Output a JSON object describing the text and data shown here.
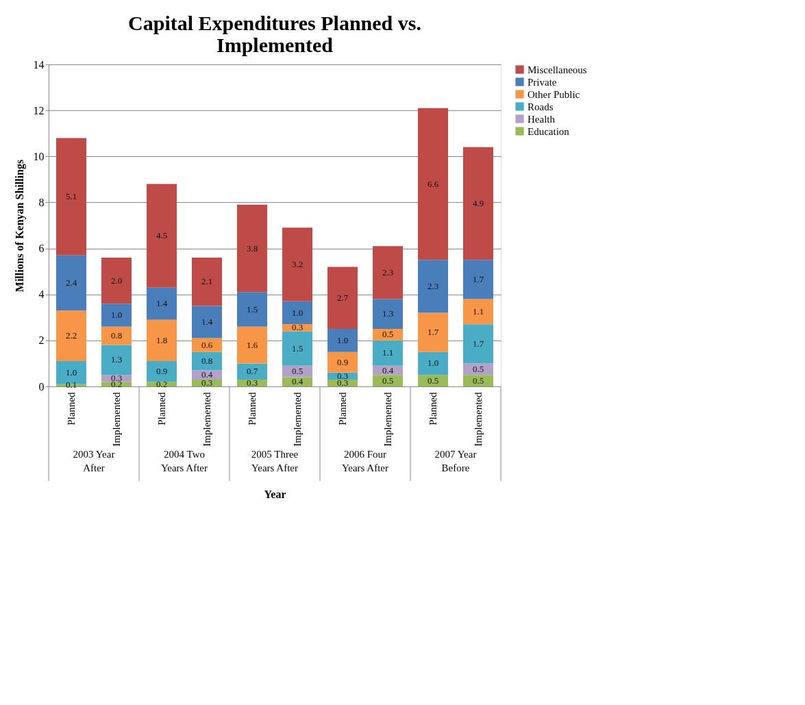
{
  "chart_data": {
    "type": "bar",
    "title": "Capital Expenditures Planned vs. Implemented",
    "xlabel": "Year",
    "ylabel": "Millions of Kenyan Shillings",
    "categories": [
      "Planned",
      "Implemented",
      "Planned",
      "Implemented",
      "Planned",
      "Implemented",
      "Planned",
      "Implemented",
      "Planned",
      "Implemented"
    ],
    "annotations": [
      "2003 Year After",
      "2004 Two Years After",
      "2005 Three Years After",
      "2006 Four Years After",
      "2007 Year Before"
    ],
    "stacked": true,
    "grid": "y",
    "legend": "right",
    "ylim": [
      0,
      14
    ],
    "yticks": [
      0,
      2,
      4,
      6,
      8,
      10,
      12,
      14
    ],
    "series": [
      {
        "name": "Education",
        "color": "#9bbb59",
        "values": [
          0.1,
          0.2,
          0.2,
          0.3,
          0.3,
          0.4,
          0.3,
          0.5,
          0.5,
          0.5
        ],
        "value_labels": [
          "0.1",
          "0.2",
          "0.2",
          "0.3",
          "0.3",
          "0.4",
          "0.3",
          "0.5",
          "0.5",
          "0.5"
        ]
      },
      {
        "name": "Health",
        "color": "#b3a2c7",
        "values": [
          null,
          0.3,
          null,
          0.4,
          null,
          0.5,
          null,
          0.4,
          null,
          0.5
        ],
        "value_labels": [
          null,
          "0.3",
          null,
          "0.4",
          null,
          "0.5",
          null,
          "0.4",
          null,
          "0.5"
        ]
      },
      {
        "name": "Roads",
        "color": "#4bacc6",
        "values": [
          1.0,
          1.3,
          0.9,
          0.8,
          0.7,
          1.5,
          0.3,
          1.1,
          1.0,
          1.7
        ],
        "value_labels": [
          "1.0",
          "1.3",
          "0.9",
          "0.8",
          "0.7",
          "1.5",
          "0.3",
          "1.1",
          "1.0",
          "1.7"
        ]
      },
      {
        "name": "Other Public",
        "color": "#f79646",
        "values": [
          2.2,
          0.8,
          1.8,
          0.6,
          1.6,
          0.3,
          0.9,
          0.5,
          1.7,
          1.1
        ],
        "value_labels": [
          "2.2",
          "0.8",
          "1.8",
          "0.6",
          "1.6",
          "0.3",
          "0.9",
          "0.5",
          "1.7",
          "1.1"
        ]
      },
      {
        "name": "Private",
        "color": "#4a7ebb",
        "values": [
          2.4,
          1.0,
          1.4,
          1.4,
          1.5,
          1.0,
          1.0,
          1.3,
          2.3,
          1.7
        ],
        "value_labels": [
          "2.4",
          "1.0",
          "1.4",
          "1.4",
          "1.5",
          "1.0",
          "1.0",
          "1.3",
          "2.3",
          "1.7"
        ]
      },
      {
        "name": "Miscellaneous",
        "color": "#be4b48",
        "values": [
          5.1,
          2.0,
          4.5,
          2.1,
          3.8,
          3.2,
          2.7,
          2.3,
          6.6,
          4.9
        ],
        "value_labels": [
          "5.1",
          "2.0",
          "4.5",
          "2.1",
          "3.8",
          "3.2",
          "2.7",
          "2.3",
          "6.6",
          "4.9"
        ]
      }
    ]
  }
}
